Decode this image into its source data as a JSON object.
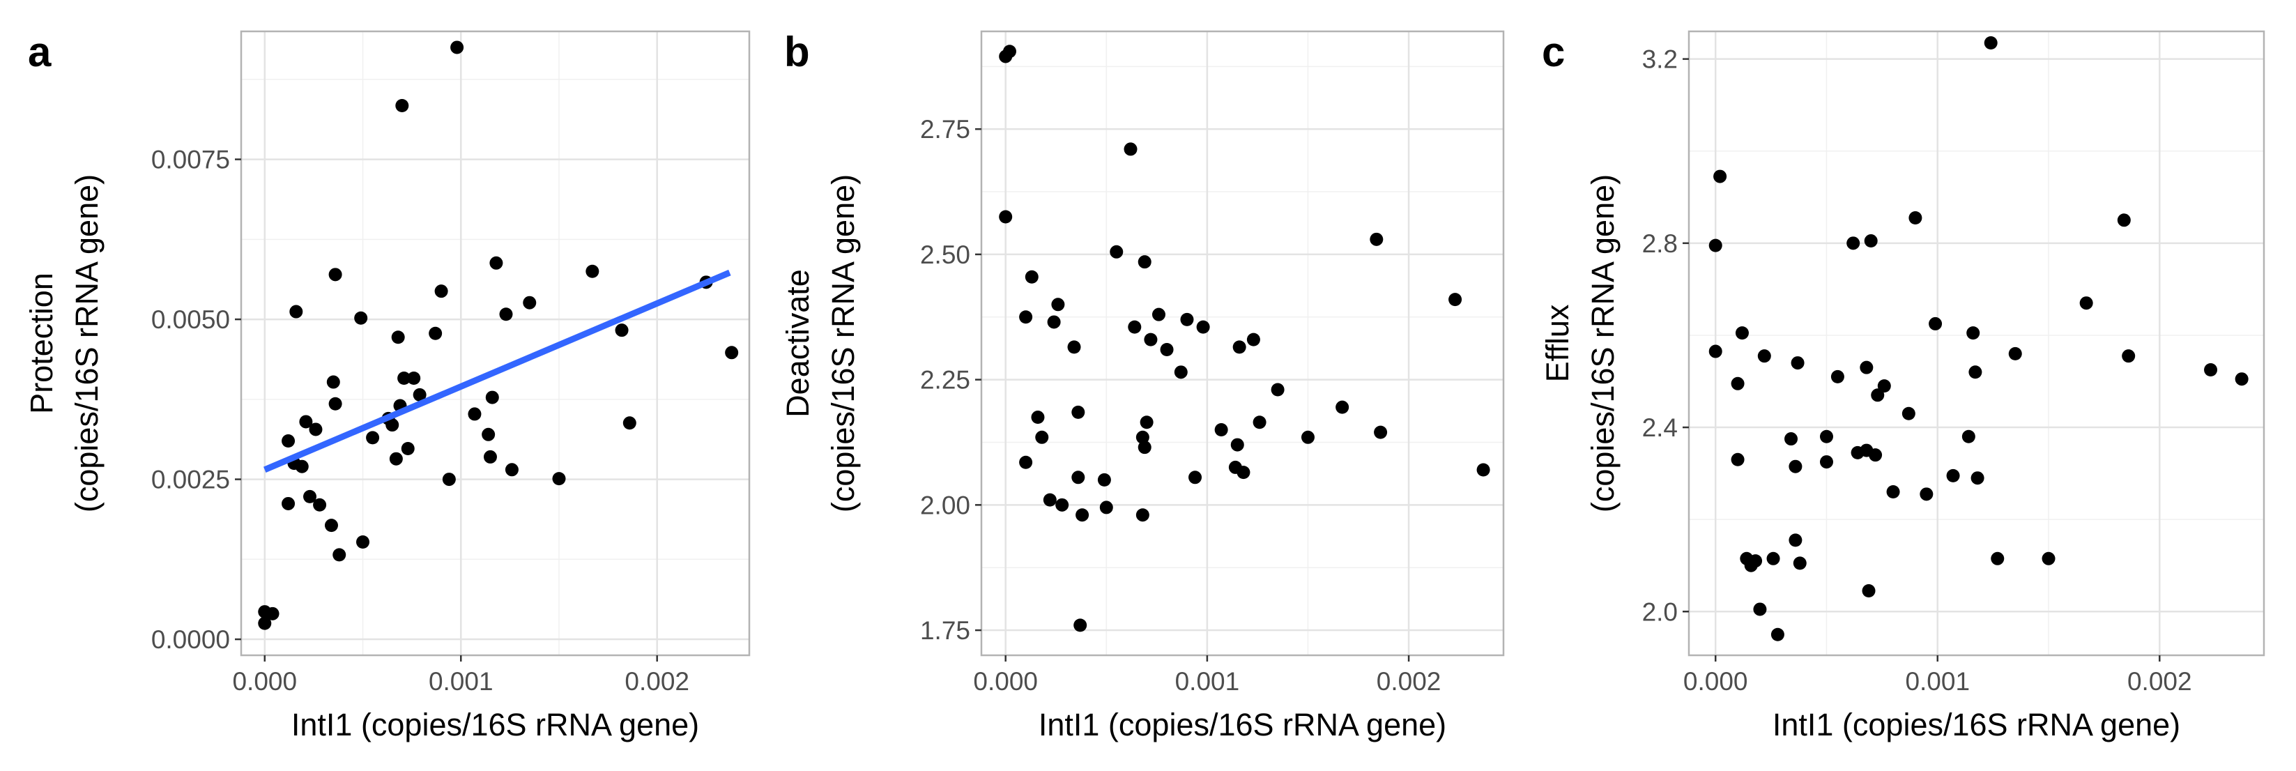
{
  "chart_data": [
    {
      "panel": "a",
      "type": "scatter",
      "xlabel": "IntI1 (copies/16S rRNA gene)",
      "ylabel": [
        "Protection",
        "(copies/16S rRNA gene)"
      ],
      "xlim": [
        -0.00012,
        0.00247
      ],
      "ylim": [
        -0.00025,
        0.0095
      ],
      "xticks": [
        0,
        0.001,
        0.002
      ],
      "xtick_labels": [
        "0.000",
        "0.001",
        "0.002"
      ],
      "yticks": [
        0,
        0.0025,
        0.005,
        0.0075
      ],
      "ytick_labels": [
        "0.0000",
        "0.0025",
        "0.0050",
        "0.0075"
      ],
      "grid": true,
      "point_color": "#000000",
      "fit_line": {
        "x": [
          0.0,
          0.00237
        ],
        "y": [
          0.00265,
          0.00573
        ],
        "color": "#3366ff"
      },
      "points": [
        [
          0.0,
          0.00043
        ],
        [
          4e-05,
          0.0004
        ],
        [
          0.0,
          0.00025
        ],
        [
          0.00012,
          0.0031
        ],
        [
          0.00012,
          0.00212
        ],
        [
          0.00015,
          0.00275
        ],
        [
          0.00016,
          0.00512
        ],
        [
          0.00019,
          0.0027
        ],
        [
          0.00021,
          0.0034
        ],
        [
          0.00023,
          0.00223
        ],
        [
          0.00026,
          0.00328
        ],
        [
          0.00028,
          0.0021
        ],
        [
          0.00034,
          0.00178
        ],
        [
          0.00035,
          0.00402
        ],
        [
          0.00036,
          0.0057
        ],
        [
          0.00036,
          0.00368
        ],
        [
          0.00038,
          0.00132
        ],
        [
          0.00049,
          0.00502
        ],
        [
          0.0005,
          0.00152
        ],
        [
          0.00055,
          0.00315
        ],
        [
          0.00063,
          0.00345
        ],
        [
          0.00065,
          0.00335
        ],
        [
          0.00067,
          0.00282
        ],
        [
          0.00068,
          0.00472
        ],
        [
          0.00069,
          0.00365
        ],
        [
          0.0007,
          0.00834
        ],
        [
          0.00071,
          0.00408
        ],
        [
          0.00073,
          0.00298
        ],
        [
          0.00076,
          0.00408
        ],
        [
          0.00079,
          0.00382
        ],
        [
          0.00087,
          0.00478
        ],
        [
          0.0009,
          0.00544
        ],
        [
          0.00094,
          0.0025
        ],
        [
          0.00098,
          0.00925
        ],
        [
          0.00107,
          0.00352
        ],
        [
          0.00114,
          0.0032
        ],
        [
          0.00115,
          0.00285
        ],
        [
          0.00116,
          0.00378
        ],
        [
          0.00118,
          0.00588
        ],
        [
          0.00123,
          0.00508
        ],
        [
          0.00126,
          0.00265
        ],
        [
          0.00135,
          0.00526
        ],
        [
          0.0015,
          0.00251
        ],
        [
          0.00167,
          0.00575
        ],
        [
          0.00182,
          0.00483
        ],
        [
          0.00186,
          0.00338
        ],
        [
          0.00225,
          0.00558
        ],
        [
          0.00238,
          0.00448
        ]
      ]
    },
    {
      "panel": "b",
      "type": "scatter",
      "xlabel": "IntI1 (copies/16S rRNA gene)",
      "ylabel": [
        "Deactivate",
        "(copies/16S rRNA gene)"
      ],
      "xlim": [
        -0.00012,
        0.00247
      ],
      "ylim": [
        1.7,
        2.945
      ],
      "xticks": [
        0,
        0.001,
        0.002
      ],
      "xtick_labels": [
        "0.000",
        "0.001",
        "0.002"
      ],
      "yticks": [
        1.75,
        2.0,
        2.25,
        2.5,
        2.75
      ],
      "ytick_labels": [
        "1.75",
        "2.00",
        "2.25",
        "2.50",
        "2.75"
      ],
      "grid": true,
      "point_color": "#000000",
      "points": [
        [
          0.0,
          2.895
        ],
        [
          2e-05,
          2.905
        ],
        [
          0.0,
          2.575
        ],
        [
          0.0001,
          2.085
        ],
        [
          0.0001,
          2.375
        ],
        [
          0.00013,
          2.455
        ],
        [
          0.00016,
          2.175
        ],
        [
          0.00018,
          2.135
        ],
        [
          0.00022,
          2.01
        ],
        [
          0.00024,
          2.365
        ],
        [
          0.00026,
          2.4
        ],
        [
          0.00028,
          2.0
        ],
        [
          0.00034,
          2.315
        ],
        [
          0.00036,
          2.185
        ],
        [
          0.00036,
          2.055
        ],
        [
          0.00037,
          1.76
        ],
        [
          0.00038,
          1.98
        ],
        [
          0.00049,
          2.05
        ],
        [
          0.0005,
          1.995
        ],
        [
          0.00055,
          2.505
        ],
        [
          0.00062,
          2.71
        ],
        [
          0.00064,
          2.355
        ],
        [
          0.00068,
          1.98
        ],
        [
          0.00068,
          2.135
        ],
        [
          0.00069,
          2.485
        ],
        [
          0.00069,
          2.115
        ],
        [
          0.0007,
          2.165
        ],
        [
          0.00072,
          2.33
        ],
        [
          0.00076,
          2.38
        ],
        [
          0.0008,
          2.31
        ],
        [
          0.00087,
          2.265
        ],
        [
          0.0009,
          2.37
        ],
        [
          0.00094,
          2.055
        ],
        [
          0.00098,
          2.355
        ],
        [
          0.00107,
          2.15
        ],
        [
          0.00114,
          2.075
        ],
        [
          0.00115,
          2.12
        ],
        [
          0.00116,
          2.315
        ],
        [
          0.00118,
          2.065
        ],
        [
          0.00123,
          2.33
        ],
        [
          0.00126,
          2.165
        ],
        [
          0.00135,
          2.23
        ],
        [
          0.0015,
          2.135
        ],
        [
          0.00167,
          2.195
        ],
        [
          0.00184,
          2.53
        ],
        [
          0.00186,
          2.145
        ],
        [
          0.00223,
          2.41
        ],
        [
          0.00237,
          2.07
        ]
      ]
    },
    {
      "panel": "c",
      "type": "scatter",
      "xlabel": "IntI1 (copies/16S rRNA gene)",
      "ylabel": [
        "Efflux",
        "(copies/16S rRNA gene)"
      ],
      "xlim": [
        -0.00012,
        0.00247
      ],
      "ylim": [
        1.905,
        3.26
      ],
      "xticks": [
        0,
        0.001,
        0.002
      ],
      "xtick_labels": [
        "0.000",
        "0.001",
        "0.002"
      ],
      "yticks": [
        2.0,
        2.4,
        2.8,
        3.2
      ],
      "ytick_labels": [
        "2.0",
        "2.4",
        "2.8",
        "3.2"
      ],
      "grid": true,
      "point_color": "#000000",
      "points": [
        [
          0.0,
          2.795
        ],
        [
          2e-05,
          2.945
        ],
        [
          0.0,
          2.565
        ],
        [
          0.0001,
          2.495
        ],
        [
          0.0001,
          2.33
        ],
        [
          0.00012,
          2.605
        ],
        [
          0.00014,
          2.115
        ],
        [
          0.00016,
          2.1
        ],
        [
          0.00018,
          2.11
        ],
        [
          0.0002,
          2.005
        ],
        [
          0.00022,
          2.555
        ],
        [
          0.00026,
          2.115
        ],
        [
          0.00028,
          1.95
        ],
        [
          0.00034,
          2.375
        ],
        [
          0.00036,
          2.315
        ],
        [
          0.00036,
          2.155
        ],
        [
          0.00037,
          2.54
        ],
        [
          0.00038,
          2.105
        ],
        [
          0.0005,
          2.38
        ],
        [
          0.0005,
          2.325
        ],
        [
          0.00055,
          2.51
        ],
        [
          0.00062,
          2.8
        ],
        [
          0.00064,
          2.345
        ],
        [
          0.00068,
          2.35
        ],
        [
          0.00068,
          2.53
        ],
        [
          0.00069,
          2.045
        ],
        [
          0.0007,
          2.805
        ],
        [
          0.00072,
          2.34
        ],
        [
          0.00073,
          2.47
        ],
        [
          0.00076,
          2.49
        ],
        [
          0.0008,
          2.26
        ],
        [
          0.00087,
          2.43
        ],
        [
          0.0009,
          2.855
        ],
        [
          0.00095,
          2.255
        ],
        [
          0.00099,
          2.625
        ],
        [
          0.00107,
          2.295
        ],
        [
          0.00114,
          2.38
        ],
        [
          0.00116,
          2.605
        ],
        [
          0.00117,
          2.52
        ],
        [
          0.00118,
          2.29
        ],
        [
          0.00124,
          3.235
        ],
        [
          0.00127,
          2.115
        ],
        [
          0.00135,
          2.56
        ],
        [
          0.0015,
          2.115
        ],
        [
          0.00167,
          2.67
        ],
        [
          0.00184,
          2.85
        ],
        [
          0.00186,
          2.555
        ],
        [
          0.00223,
          2.525
        ],
        [
          0.00237,
          2.505
        ]
      ]
    }
  ]
}
